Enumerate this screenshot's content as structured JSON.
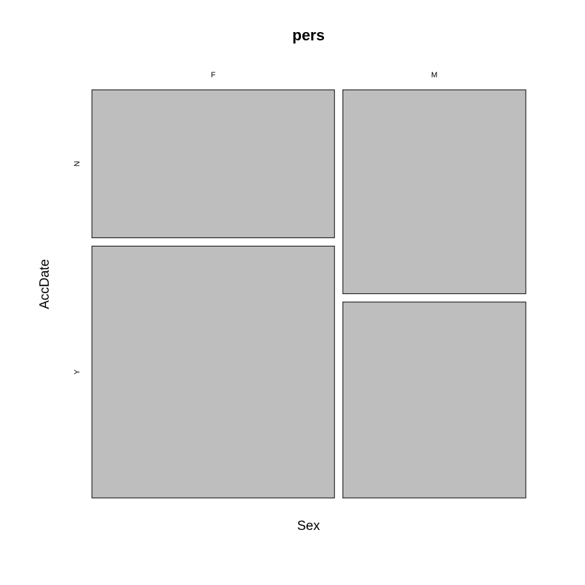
{
  "chart_data": {
    "type": "mosaic",
    "title": "pers",
    "xlabel": "Sex",
    "ylabel": "AccDate",
    "x_categories": [
      "F",
      "M"
    ],
    "y_categories": [
      "N",
      "Y"
    ],
    "column_proportions": [
      0.57,
      0.43
    ],
    "within_column_proportions": {
      "F": {
        "N": 0.37,
        "Y": 0.63
      },
      "M": {
        "N": 0.51,
        "Y": 0.49
      }
    },
    "colors": {
      "tile_fill": "#bebebe",
      "tile_stroke": "#000000"
    }
  }
}
